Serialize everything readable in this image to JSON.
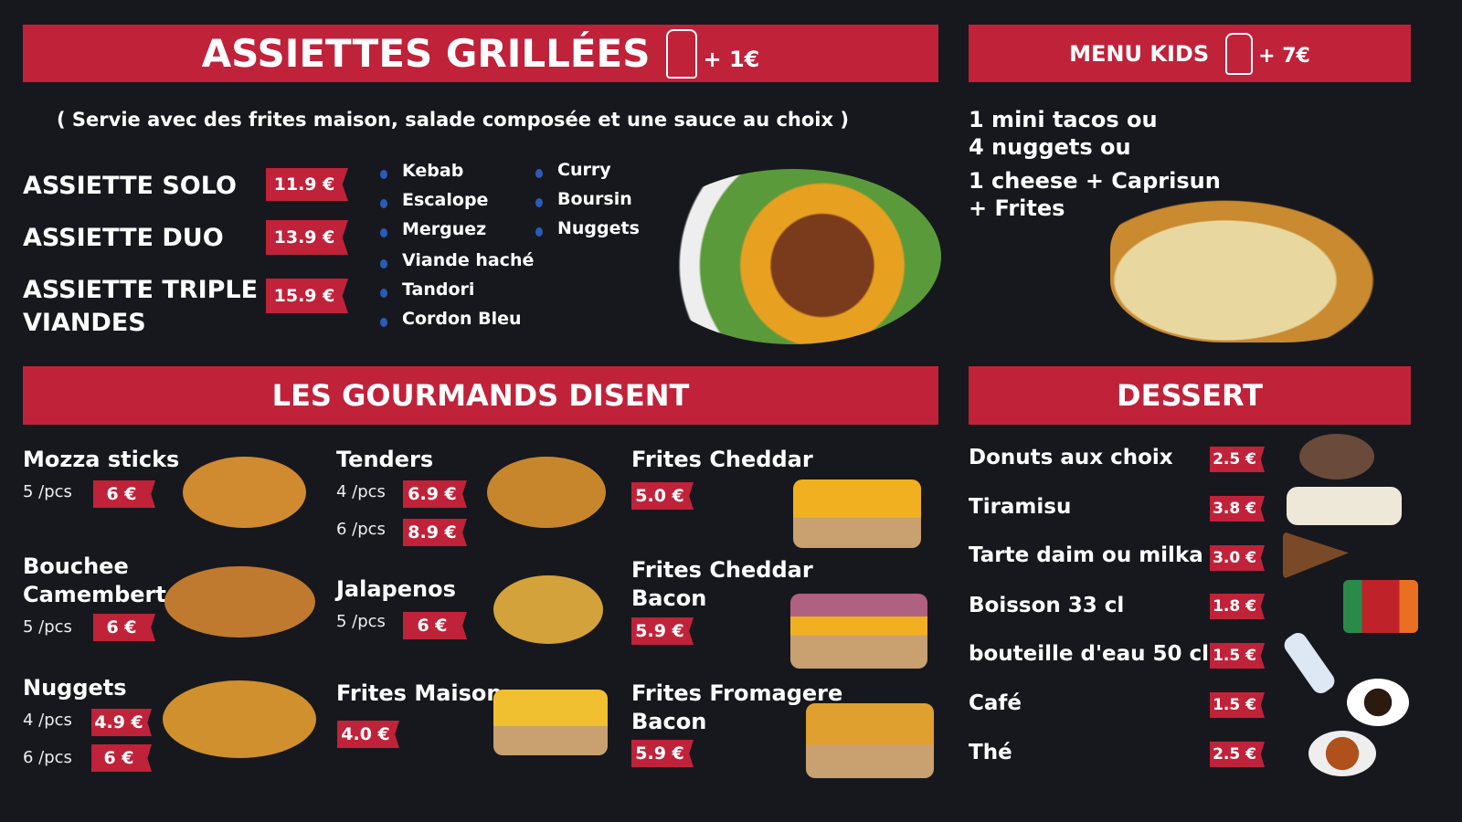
{
  "assiettes": {
    "title": "ASSIETTES GRILLÉES",
    "drink_extra": "+ 1€",
    "subtitle": "( Servie avec des frites maison, salade composée et une sauce au choix )",
    "items": [
      {
        "name": "ASSIETTE SOLO",
        "price": "11.9 €"
      },
      {
        "name": "ASSIETTE DUO",
        "price": "13.9 €"
      },
      {
        "name": "ASSIETTE TRIPLE VIANDES",
        "price": "15.9 €"
      }
    ],
    "meats": [
      "Kebab",
      "Escalope",
      "Merguez",
      "Viande haché",
      "Tandori",
      "Cordon Bleu"
    ],
    "extras": [
      "Curry",
      "Boursin",
      "Nuggets"
    ],
    "icon": "drink-bottle-can-icon"
  },
  "kids": {
    "title": "MENU KIDS",
    "drink_extra": "+ 7€",
    "lines": [
      "1 mini tacos ou",
      "4 nuggets ou",
      "1 cheese + Caprisun",
      "+ Frites"
    ]
  },
  "gourmands": {
    "title": "LES GOURMANDS DISENT",
    "items": [
      {
        "name": "Mozza sticks",
        "pcs": [
          "5 /pcs"
        ],
        "prices": [
          "6 €"
        ]
      },
      {
        "name": "Bouchee Camembert",
        "pcs": [
          "5 /pcs"
        ],
        "prices": [
          "6 €"
        ]
      },
      {
        "name": "Nuggets",
        "pcs": [
          "4 /pcs",
          "6 /pcs"
        ],
        "prices": [
          "4.9 €",
          "6 €"
        ]
      },
      {
        "name": "Tenders",
        "pcs": [
          "4 /pcs",
          "6 /pcs"
        ],
        "prices": [
          "6.9 €",
          "8.9 €"
        ]
      },
      {
        "name": "Jalapenos",
        "pcs": [
          "5 /pcs"
        ],
        "prices": [
          "6 €"
        ]
      },
      {
        "name": "Frites Maison",
        "prices": [
          "4.0 €"
        ]
      },
      {
        "name": "Frites Cheddar",
        "prices": [
          "5.0 €"
        ]
      },
      {
        "name": "Frites Cheddar Bacon",
        "prices": [
          "5.9 €"
        ]
      },
      {
        "name": "Frites Fromagere Bacon",
        "prices": [
          "5.9 €"
        ]
      }
    ]
  },
  "dessert": {
    "title": "DESSERT",
    "items": [
      {
        "name": "Donuts aux choix",
        "price": "2.5 €"
      },
      {
        "name": "Tiramisu",
        "price": "3.8 €"
      },
      {
        "name": "Tarte daim ou milka",
        "price": "3.0 €"
      },
      {
        "name": "Boisson 33 cl",
        "price": "1.8 €"
      },
      {
        "name": "bouteille d'eau 50 cl",
        "price": "1.5 €"
      },
      {
        "name": "Café",
        "price": "1.5 €"
      },
      {
        "name": "Thé",
        "price": "2.5 €"
      }
    ]
  },
  "colors": {
    "accent": "#c0223a",
    "background": "#17181d",
    "bullet": "#2b5bb8"
  }
}
